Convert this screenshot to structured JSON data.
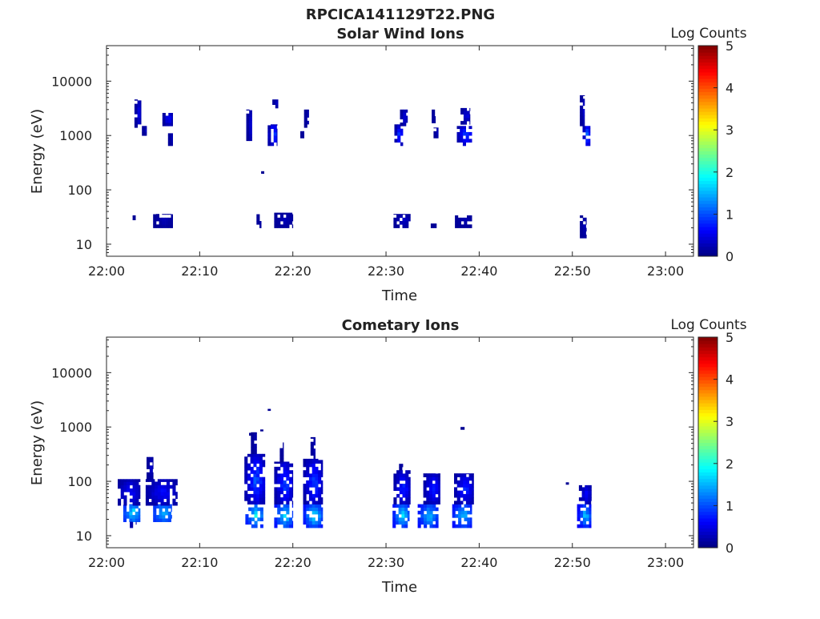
{
  "figure": {
    "title": "RPCICA141129T22.PNG"
  },
  "colormap": {
    "name": "jet",
    "stops": [
      "#00007f",
      "#0000ff",
      "#007fff",
      "#00ffff",
      "#7fff7f",
      "#ffff00",
      "#ff7f00",
      "#ff0000",
      "#7f0000"
    ]
  },
  "chart_data": [
    {
      "type": "heatmap",
      "title": "Solar Wind Ions",
      "xlabel": "Time",
      "ylabel": "Energy (eV)",
      "colorbar_label": "Log Counts",
      "colorbar_ticks": [
        "0",
        "1",
        "2",
        "3",
        "4",
        "5"
      ],
      "clim": [
        0,
        5
      ],
      "x_ticks": [
        "22:00",
        "22:10",
        "22:20",
        "22:30",
        "22:40",
        "22:50",
        "23:00"
      ],
      "xlim_minutes_after_22_00": [
        0,
        63
      ],
      "y_ticks": [
        "10",
        "100",
        "1000",
        "10000"
      ],
      "y_scale": "log",
      "ylim": [
        6,
        45000
      ],
      "grid": false,
      "blobs": [
        {
          "t": [
            3.0,
            3.7
          ],
          "e": [
            1400,
            4600
          ],
          "c": [
            0.1,
            0.6
          ]
        },
        {
          "t": [
            3.8,
            4.3
          ],
          "e": [
            1000,
            1500
          ],
          "c": [
            0.1,
            0.4
          ]
        },
        {
          "t": [
            6.0,
            7.1
          ],
          "e": [
            1500,
            2600
          ],
          "c": [
            0.1,
            0.8
          ]
        },
        {
          "t": [
            6.6,
            7.1
          ],
          "e": [
            650,
            1100
          ],
          "c": [
            0.1,
            0.4
          ]
        },
        {
          "t": [
            15.0,
            15.6
          ],
          "e": [
            800,
            3000
          ],
          "c": [
            0.1,
            0.5
          ]
        },
        {
          "t": [
            17.3,
            18.3
          ],
          "e": [
            650,
            1600
          ],
          "c": [
            0.1,
            1.4
          ]
        },
        {
          "t": [
            17.8,
            18.4
          ],
          "e": [
            3200,
            4600
          ],
          "c": [
            0.1,
            0.4
          ]
        },
        {
          "t": [
            21.2,
            21.7
          ],
          "e": [
            1400,
            3000
          ],
          "c": [
            0.1,
            0.4
          ]
        },
        {
          "t": [
            20.8,
            21.2
          ],
          "e": [
            900,
            1200
          ],
          "c": [
            0.1,
            0.3
          ]
        },
        {
          "t": [
            30.9,
            31.8
          ],
          "e": [
            650,
            1600
          ],
          "c": [
            0.1,
            1.2
          ]
        },
        {
          "t": [
            31.5,
            32.3
          ],
          "e": [
            1500,
            3000
          ],
          "c": [
            0.1,
            0.6
          ]
        },
        {
          "t": [
            34.9,
            35.3
          ],
          "e": [
            1700,
            3000
          ],
          "c": [
            0.1,
            0.4
          ]
        },
        {
          "t": [
            35.1,
            35.6
          ],
          "e": [
            900,
            1400
          ],
          "c": [
            0.1,
            0.4
          ]
        },
        {
          "t": [
            37.6,
            39.2
          ],
          "e": [
            650,
            1500
          ],
          "c": [
            0.1,
            1.3
          ]
        },
        {
          "t": [
            38.0,
            39.0
          ],
          "e": [
            1600,
            3200
          ],
          "c": [
            0.1,
            0.6
          ]
        },
        {
          "t": [
            50.8,
            51.3
          ],
          "e": [
            1500,
            5500
          ],
          "c": [
            0.1,
            0.5
          ]
        },
        {
          "t": [
            51.1,
            51.9
          ],
          "e": [
            650,
            1500
          ],
          "c": [
            0.2,
            1.5
          ]
        },
        {
          "t": [
            5.0,
            7.1
          ],
          "e": [
            20,
            36
          ],
          "c": [
            0.1,
            0.3
          ]
        },
        {
          "t": [
            2.8,
            3.1
          ],
          "e": [
            28,
            34
          ],
          "c": [
            0.1,
            0.2
          ]
        },
        {
          "t": [
            16.1,
            16.6
          ],
          "e": [
            20,
            40
          ],
          "c": [
            0.1,
            0.3
          ]
        },
        {
          "t": [
            18.0,
            20.0
          ],
          "e": [
            20,
            38
          ],
          "c": [
            0.1,
            0.3
          ]
        },
        {
          "t": [
            30.8,
            32.6
          ],
          "e": [
            20,
            36
          ],
          "c": [
            0.1,
            0.4
          ]
        },
        {
          "t": [
            34.8,
            35.4
          ],
          "e": [
            20,
            24
          ],
          "c": [
            0.1,
            0.2
          ]
        },
        {
          "t": [
            37.4,
            39.2
          ],
          "e": [
            20,
            34
          ],
          "c": [
            0.1,
            0.3
          ]
        },
        {
          "t": [
            50.8,
            51.5
          ],
          "e": [
            13,
            34
          ],
          "c": [
            0.1,
            0.3
          ]
        },
        {
          "t": [
            15.9,
            16.2
          ],
          "e": [
            300,
            340
          ],
          "c": [
            0.1,
            0.1
          ]
        },
        {
          "t": [
            16.6,
            16.9
          ],
          "e": [
            200,
            220
          ],
          "c": [
            0.1,
            0.1
          ]
        },
        {
          "t": [
            31.3,
            31.6
          ],
          "e": [
            105,
            115
          ],
          "c": [
            0.1,
            0.1
          ]
        }
      ]
    },
    {
      "type": "heatmap",
      "title": "Cometary Ions",
      "xlabel": "Time",
      "ylabel": "Energy (eV)",
      "colorbar_label": "Log Counts",
      "colorbar_ticks": [
        "0",
        "1",
        "2",
        "3",
        "4",
        "5"
      ],
      "clim": [
        0,
        5
      ],
      "x_ticks": [
        "22:00",
        "22:10",
        "22:20",
        "22:30",
        "22:40",
        "22:50",
        "23:00"
      ],
      "xlim_minutes_after_22_00": [
        0,
        63
      ],
      "y_ticks": [
        "10",
        "100",
        "1000",
        "10000"
      ],
      "y_scale": "log",
      "ylim": [
        6,
        45000
      ],
      "grid": false,
      "blobs": [
        {
          "t": [
            1.8,
            3.6
          ],
          "e": [
            18,
            38
          ],
          "c": [
            0.8,
            2.0
          ]
        },
        {
          "t": [
            1.2,
            3.6
          ],
          "e": [
            36,
            110
          ],
          "c": [
            0.1,
            0.8
          ]
        },
        {
          "t": [
            2.5,
            3.2
          ],
          "e": [
            14,
            18
          ],
          "c": [
            0.2,
            0.4
          ]
        },
        {
          "t": [
            5.0,
            7.0
          ],
          "e": [
            18,
            38
          ],
          "c": [
            0.8,
            1.7
          ]
        },
        {
          "t": [
            4.2,
            7.6
          ],
          "e": [
            36,
            110
          ],
          "c": [
            0.1,
            0.8
          ]
        },
        {
          "t": [
            4.3,
            5.0
          ],
          "e": [
            110,
            280
          ],
          "c": [
            0.1,
            0.4
          ]
        },
        {
          "t": [
            14.9,
            16.8
          ],
          "e": [
            14,
            38
          ],
          "c": [
            0.6,
            2.1
          ]
        },
        {
          "t": [
            14.8,
            17.0
          ],
          "e": [
            38,
            320
          ],
          "c": [
            0.1,
            1.3
          ]
        },
        {
          "t": [
            15.5,
            16.1
          ],
          "e": [
            320,
            800
          ],
          "c": [
            0.1,
            0.3
          ]
        },
        {
          "t": [
            18.0,
            20.0
          ],
          "e": [
            14,
            38
          ],
          "c": [
            0.6,
            2.1
          ]
        },
        {
          "t": [
            18.0,
            20.0
          ],
          "e": [
            38,
            230
          ],
          "c": [
            0.1,
            1.2
          ]
        },
        {
          "t": [
            18.6,
            19.0
          ],
          "e": [
            230,
            520
          ],
          "c": [
            0.1,
            0.3
          ]
        },
        {
          "t": [
            21.1,
            23.2
          ],
          "e": [
            14,
            38
          ],
          "c": [
            0.6,
            2.0
          ]
        },
        {
          "t": [
            21.1,
            23.2
          ],
          "e": [
            38,
            260
          ],
          "c": [
            0.1,
            1.2
          ]
        },
        {
          "t": [
            21.9,
            22.4
          ],
          "e": [
            260,
            650
          ],
          "c": [
            0.1,
            0.4
          ]
        },
        {
          "t": [
            30.7,
            32.5
          ],
          "e": [
            14,
            38
          ],
          "c": [
            0.6,
            2.0
          ]
        },
        {
          "t": [
            30.8,
            32.6
          ],
          "e": [
            38,
            160
          ],
          "c": [
            0.1,
            1.0
          ]
        },
        {
          "t": [
            31.4,
            31.8
          ],
          "e": [
            160,
            210
          ],
          "c": [
            0.1,
            0.3
          ]
        },
        {
          "t": [
            33.4,
            35.6
          ],
          "e": [
            14,
            38
          ],
          "c": [
            0.6,
            1.8
          ]
        },
        {
          "t": [
            34.0,
            35.8
          ],
          "e": [
            38,
            140
          ],
          "c": [
            0.1,
            1.0
          ]
        },
        {
          "t": [
            37.1,
            39.2
          ],
          "e": [
            14,
            38
          ],
          "c": [
            0.6,
            1.8
          ]
        },
        {
          "t": [
            37.3,
            39.4
          ],
          "e": [
            38,
            140
          ],
          "c": [
            0.1,
            1.0
          ]
        },
        {
          "t": [
            50.5,
            52.0
          ],
          "e": [
            14,
            38
          ],
          "c": [
            0.5,
            1.8
          ]
        },
        {
          "t": [
            50.7,
            52.0
          ],
          "e": [
            38,
            85
          ],
          "c": [
            0.1,
            0.8
          ]
        },
        {
          "t": [
            49.3,
            49.6
          ],
          "e": [
            88,
            96
          ],
          "c": [
            0.1,
            0.1
          ]
        },
        {
          "t": [
            17.3,
            17.6
          ],
          "e": [
            2000,
            2150
          ],
          "c": [
            0.1,
            0.1
          ]
        },
        {
          "t": [
            15.3,
            15.6
          ],
          "e": [
            700,
            780
          ],
          "c": [
            0.1,
            0.1
          ]
        },
        {
          "t": [
            16.5,
            16.8
          ],
          "e": [
            840,
            900
          ],
          "c": [
            0.1,
            0.1
          ]
        },
        {
          "t": [
            30.8,
            31.1
          ],
          "e": [
            900,
            980
          ],
          "c": [
            0.1,
            0.1
          ]
        },
        {
          "t": [
            38.0,
            38.4
          ],
          "e": [
            900,
            1000
          ],
          "c": [
            0.1,
            0.1
          ]
        }
      ]
    }
  ]
}
